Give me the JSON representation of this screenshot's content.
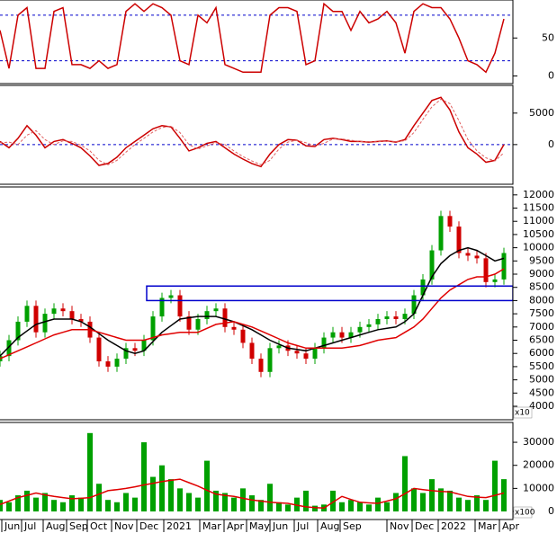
{
  "chart_data": [
    {
      "type": "line",
      "xlim": [
        0,
        57
      ],
      "ylim": [
        -10,
        100
      ],
      "yticks": [
        0,
        50
      ],
      "levels": [
        20,
        80
      ],
      "x": [
        0,
        1,
        2,
        3,
        4,
        5,
        6,
        7,
        8,
        9,
        10,
        11,
        12,
        13,
        14,
        15,
        16,
        17,
        18,
        19,
        20,
        21,
        22,
        23,
        24,
        25,
        26,
        27,
        28,
        29,
        30,
        31,
        32,
        33,
        34,
        35,
        36,
        37,
        38,
        39,
        40,
        41,
        42,
        43,
        44,
        45,
        46,
        47,
        48,
        49,
        50,
        51,
        52,
        53,
        54,
        55,
        56
      ],
      "series": [
        {
          "color": "#cc0000",
          "values": [
            60,
            10,
            80,
            90,
            10,
            10,
            85,
            90,
            15,
            15,
            10,
            20,
            10,
            15,
            85,
            95,
            85,
            95,
            90,
            80,
            20,
            15,
            80,
            70,
            90,
            15,
            10,
            5,
            5,
            5,
            80,
            90,
            90,
            85,
            15,
            20,
            95,
            85,
            85,
            60,
            85,
            70,
            75,
            85,
            70,
            30,
            85,
            95,
            90,
            90,
            75,
            50,
            20,
            15,
            5,
            30,
            75
          ]
        }
      ]
    },
    {
      "type": "line",
      "xlim": [
        0,
        57
      ],
      "ylim": [
        -6300,
        9400
      ],
      "yticks": [
        0,
        5000
      ],
      "levels": [
        0
      ],
      "x": [
        0,
        1,
        2,
        3,
        4,
        5,
        6,
        7,
        8,
        9,
        10,
        11,
        12,
        13,
        14,
        15,
        16,
        17,
        18,
        19,
        20,
        21,
        22,
        23,
        24,
        25,
        26,
        27,
        28,
        29,
        30,
        31,
        32,
        33,
        34,
        35,
        36,
        37,
        38,
        39,
        40,
        41,
        42,
        43,
        44,
        45,
        46,
        47,
        48,
        49,
        50,
        51,
        52,
        53,
        54,
        55,
        56
      ],
      "series": [
        {
          "color": "#cc0000",
          "values": [
            500,
            -500,
            1000,
            3000,
            1500,
            -500,
            500,
            800,
            200,
            -500,
            -1800,
            -3300,
            -3000,
            -2000,
            -500,
            500,
            1500,
            2500,
            3000,
            2800,
            1000,
            -1000,
            -500,
            200,
            500,
            -500,
            -1500,
            -2300,
            -3000,
            -3500,
            -1500,
            0,
            800,
            700,
            -200,
            -300,
            800,
            1000,
            800,
            500,
            500,
            400,
            500,
            600,
            400,
            800,
            3000,
            5000,
            7000,
            7500,
            5500,
            2000,
            -500,
            -1500,
            -2800,
            -2500,
            0
          ]
        },
        {
          "color": "#e06060",
          "dashed": true,
          "values": [
            300,
            400,
            0,
            1500,
            2200,
            800,
            0,
            600,
            500,
            -100,
            -1000,
            -2500,
            -3200,
            -2500,
            -1200,
            0,
            1000,
            2000,
            2700,
            2900,
            1900,
            0,
            -700,
            -200,
            300,
            0,
            -1000,
            -1900,
            -2600,
            -3200,
            -2500,
            -700,
            400,
            700,
            300,
            -200,
            200,
            900,
            900,
            700,
            500,
            450,
            450,
            550,
            500,
            600,
            1900,
            4000,
            6000,
            7200,
            6500,
            3800,
            800,
            -1000,
            -2100,
            -2600,
            -1300
          ]
        }
      ]
    },
    {
      "type": "candlestick",
      "xlim": [
        0,
        57
      ],
      "ylim": [
        3490,
        12300
      ],
      "yticks": [
        4000,
        4500,
        5000,
        5500,
        6000,
        6500,
        7000,
        7500,
        8000,
        8500,
        9000,
        9500,
        10000,
        10500,
        11000,
        11500,
        12000
      ],
      "unit_label": "x10",
      "up_color": "#00a000",
      "down_color": "#d00000",
      "x": [
        0,
        1,
        2,
        3,
        4,
        5,
        6,
        7,
        8,
        9,
        10,
        11,
        12,
        13,
        14,
        15,
        16,
        17,
        18,
        19,
        20,
        21,
        22,
        23,
        24,
        25,
        26,
        27,
        28,
        29,
        30,
        31,
        32,
        33,
        34,
        35,
        36,
        37,
        38,
        39,
        40,
        41,
        42,
        43,
        44,
        45,
        46,
        47,
        48,
        49,
        50,
        51,
        52,
        53,
        54,
        55,
        56
      ],
      "open": [
        5700,
        5900,
        6500,
        7200,
        7800,
        6800,
        7500,
        7700,
        7600,
        7300,
        7200,
        6600,
        5700,
        5500,
        5800,
        6200,
        6100,
        6500,
        7400,
        8100,
        8200,
        7400,
        6900,
        7300,
        7600,
        7700,
        7000,
        6900,
        6400,
        5800,
        5300,
        6200,
        6300,
        6100,
        6000,
        5800,
        6200,
        6600,
        6800,
        6600,
        6800,
        7000,
        7100,
        7300,
        7400,
        7300,
        7500,
        8200,
        8800,
        9900,
        11200,
        10800,
        9800,
        9700,
        9600,
        8700,
        8800
      ],
      "high": [
        6100,
        6700,
        7400,
        8000,
        8000,
        7700,
        7900,
        7900,
        7800,
        7500,
        7400,
        6800,
        5900,
        6000,
        6400,
        6400,
        6700,
        7600,
        8300,
        8400,
        8400,
        7600,
        7500,
        7800,
        7900,
        7900,
        7200,
        7100,
        6600,
        6000,
        6400,
        6500,
        6500,
        6300,
        6200,
        6400,
        6800,
        7000,
        7000,
        7000,
        7200,
        7300,
        7500,
        7600,
        7600,
        7700,
        8400,
        9000,
        10100,
        11400,
        11400,
        11000,
        10000,
        9900,
        9800,
        9000,
        10000
      ],
      "low": [
        5500,
        5700,
        6300,
        7000,
        6600,
        6600,
        7300,
        7400,
        7100,
        7000,
        6400,
        5500,
        5300,
        5300,
        5600,
        5900,
        5900,
        6300,
        7200,
        7900,
        7200,
        6700,
        6700,
        7100,
        7400,
        6800,
        6700,
        6200,
        5600,
        5100,
        5100,
        6000,
        5900,
        5800,
        5600,
        5600,
        6000,
        6400,
        6400,
        6400,
        6600,
        6800,
        6900,
        7100,
        7100,
        7100,
        7300,
        8000,
        8600,
        9700,
        10600,
        9600,
        9500,
        9400,
        8500,
        8500,
        8600
      ],
      "close": [
        5900,
        6500,
        7200,
        7800,
        6800,
        7500,
        7700,
        7600,
        7300,
        7200,
        6600,
        5700,
        5500,
        5800,
        6200,
        6100,
        6500,
        7400,
        8100,
        8200,
        7400,
        6900,
        7300,
        7600,
        7700,
        7000,
        6900,
        6400,
        5800,
        5300,
        6200,
        6300,
        6100,
        6000,
        5800,
        6200,
        6600,
        6800,
        6600,
        6800,
        7000,
        7100,
        7300,
        7400,
        7300,
        7500,
        8200,
        8800,
        9900,
        11200,
        10800,
        9800,
        9700,
        9600,
        8700,
        8800,
        9800
      ],
      "series": [
        {
          "color": "#000000",
          "values": [
            5900,
            6250,
            6600,
            6850,
            7100,
            7200,
            7300,
            7300,
            7300,
            7200,
            7000,
            6750,
            6500,
            6300,
            6100,
            6000,
            6100,
            6450,
            6800,
            7050,
            7300,
            7350,
            7400,
            7400,
            7400,
            7300,
            7200,
            7050,
            6900,
            6700,
            6500,
            6350,
            6200,
            6150,
            6100,
            6200,
            6300,
            6400,
            6500,
            6600,
            6700,
            6800,
            6900,
            6950,
            7000,
            7200,
            7500,
            8200,
            8900,
            9400,
            9700,
            9900,
            10000,
            9900,
            9700,
            9500,
            9600
          ]
        },
        {
          "color": "#e00000",
          "values": [
            5800,
            5950,
            6100,
            6250,
            6400,
            6550,
            6700,
            6800,
            6900,
            6900,
            6900,
            6800,
            6700,
            6600,
            6500,
            6500,
            6500,
            6600,
            6700,
            6750,
            6800,
            6800,
            6800,
            6950,
            7100,
            7150,
            7200,
            7100,
            7000,
            6850,
            6700,
            6550,
            6400,
            6300,
            6200,
            6200,
            6200,
            6200,
            6200,
            6250,
            6300,
            6400,
            6500,
            6550,
            6600,
            6800,
            7000,
            7300,
            7700,
            8100,
            8400,
            8600,
            8800,
            8900,
            8900,
            9000,
            9200
          ]
        }
      ],
      "zone": {
        "x": [
          16.3,
          57
        ],
        "y": [
          8000,
          8550
        ],
        "color": "#0000cc"
      }
    },
    {
      "type": "bar",
      "xlim": [
        0,
        57
      ],
      "ylim": [
        -3500,
        38600
      ],
      "yticks": [
        0,
        10000,
        20000,
        30000
      ],
      "unit_label": "x100",
      "x": [
        0,
        1,
        2,
        3,
        4,
        5,
        6,
        7,
        8,
        9,
        10,
        11,
        12,
        13,
        14,
        15,
        16,
        17,
        18,
        19,
        20,
        21,
        22,
        23,
        24,
        25,
        26,
        27,
        28,
        29,
        30,
        31,
        32,
        33,
        34,
        35,
        36,
        37,
        38,
        39,
        40,
        41,
        42,
        43,
        44,
        45,
        46,
        47,
        48,
        49,
        50,
        51,
        52,
        53,
        54,
        55,
        56
      ],
      "values": [
        5000,
        4000,
        7000,
        9000,
        6000,
        8000,
        5000,
        4000,
        7000,
        6000,
        34000,
        12000,
        5000,
        4000,
        8000,
        6000,
        30000,
        15000,
        20000,
        14000,
        10000,
        8000,
        6000,
        22000,
        9000,
        8000,
        6000,
        10000,
        7000,
        5000,
        12000,
        4000,
        3000,
        6000,
        9000,
        2500,
        3000,
        9000,
        4000,
        5000,
        4000,
        3000,
        6000,
        4000,
        8000,
        24000,
        10000,
        8000,
        14000,
        10000,
        9000,
        6000,
        5000,
        7000,
        5000,
        22000,
        14000
      ],
      "color": "#00a000",
      "series": [
        {
          "color": "#e00000",
          "values": [
            3000,
            4500,
            6000,
            7000,
            8000,
            7200,
            6500,
            6000,
            5500,
            5700,
            6000,
            7500,
            9000,
            9500,
            10000,
            10700,
            11500,
            12200,
            13000,
            13500,
            14000,
            12500,
            11000,
            9200,
            7500,
            7000,
            6500,
            5700,
            5000,
            4500,
            4000,
            3700,
            3500,
            2700,
            2000,
            1700,
            1500,
            4000,
            6500,
            5200,
            4000,
            3700,
            3500,
            4500,
            5500,
            7700,
            10000,
            9500,
            9000,
            8700,
            8500,
            7500,
            6500,
            6200,
            6000,
            7000,
            8000
          ]
        }
      ],
      "xticks": [
        {
          "value": 0.2,
          "label": "Jun"
        },
        {
          "value": 2.4,
          "label": "Jul"
        },
        {
          "value": 4.8,
          "label": "Aug"
        },
        {
          "value": 7.4,
          "label": "Sep"
        },
        {
          "value": 9.7,
          "label": "Oct"
        },
        {
          "value": 12.4,
          "label": "Nov"
        },
        {
          "value": 15.2,
          "label": "Dec"
        },
        {
          "value": 18.2,
          "label": 2021
        },
        {
          "value": 22.2,
          "label": "Mar"
        },
        {
          "value": 24.9,
          "label": "Apr"
        },
        {
          "value": 27.4,
          "label": "May"
        },
        {
          "value": 30.0,
          "label": "Jun"
        },
        {
          "value": 32.7,
          "label": "Jul"
        },
        {
          "value": 35.3,
          "label": "Aug"
        },
        {
          "value": 37.8,
          "label": "Sep"
        },
        {
          "value": 43.0,
          "label": "Nov"
        },
        {
          "value": 45.8,
          "label": "Dec"
        },
        {
          "value": 48.7,
          "label": 2022
        },
        {
          "value": 52.8,
          "label": "Mar"
        },
        {
          "value": 55.5,
          "label": "Apr"
        }
      ]
    }
  ]
}
